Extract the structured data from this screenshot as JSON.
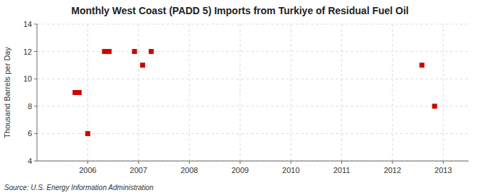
{
  "chart_data": {
    "type": "scatter",
    "title": "Monthly West Coast (PADD 5) Imports from Turkiye of Residual Fuel Oil",
    "y_label": "Thousand Barrels per Day",
    "source": "Source: U.S. Energy Information Administration",
    "x": [
      2005.75,
      2005.83,
      2006.0,
      2006.33,
      2006.42,
      2006.92,
      2007.08,
      2007.25,
      2012.58,
      2012.83
    ],
    "values": [
      9,
      9,
      6,
      12,
      12,
      12,
      11,
      12,
      11,
      8
    ],
    "color": "#cc0000",
    "marker": "square",
    "xlim": [
      2005.0,
      2013.5
    ],
    "ylim": [
      4,
      14
    ],
    "xticks": [
      2006,
      2007,
      2008,
      2009,
      2010,
      2011,
      2012,
      2013
    ],
    "yticks": [
      4,
      6,
      8,
      10,
      12,
      14
    ],
    "grid": true
  }
}
